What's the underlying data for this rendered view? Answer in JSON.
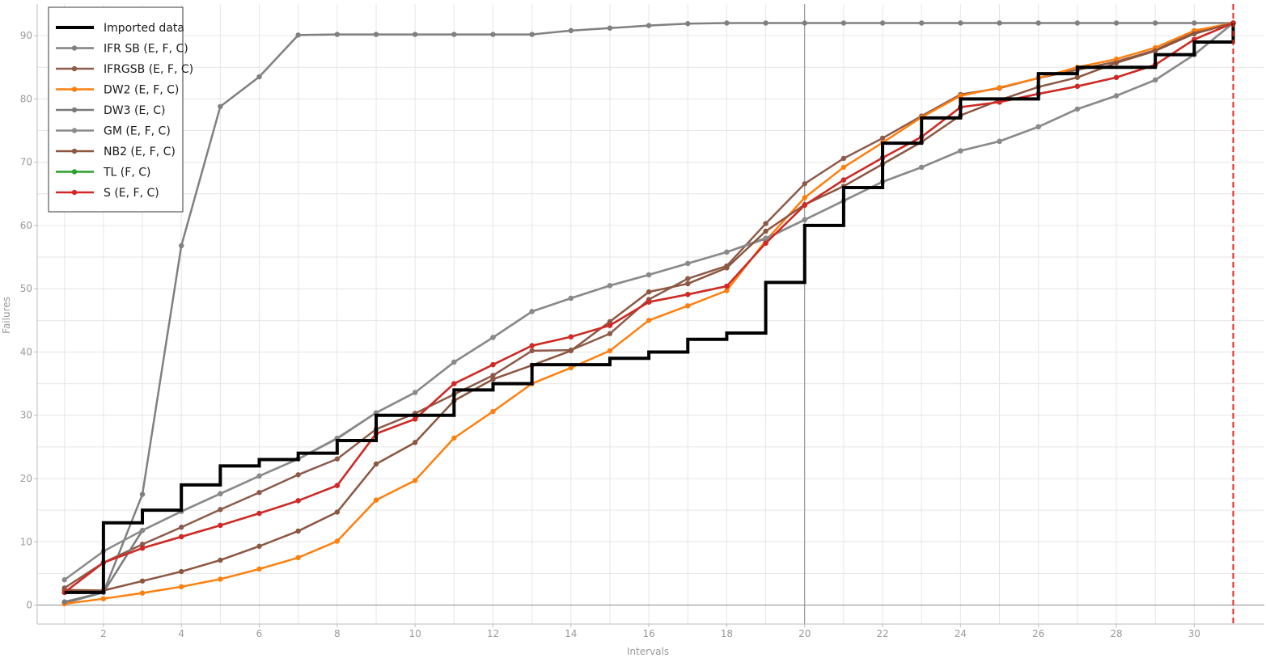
{
  "chart_data": {
    "type": "line",
    "xlabel": "Intervals",
    "ylabel": "Failures",
    "xlim": [
      0.3,
      31.8
    ],
    "ylim": [
      -3,
      95
    ],
    "x_ticks": [
      2,
      4,
      6,
      8,
      10,
      12,
      14,
      16,
      18,
      20,
      22,
      24,
      26,
      28,
      30
    ],
    "y_ticks": [
      0,
      10,
      20,
      30,
      40,
      50,
      60,
      70,
      80,
      90
    ],
    "grid": true,
    "legend_position": "top-left",
    "marker_line_x": 31,
    "marker_line_color": "#e8231e",
    "x": [
      1,
      2,
      3,
      4,
      5,
      6,
      7,
      8,
      9,
      10,
      11,
      12,
      13,
      14,
      15,
      16,
      17,
      18,
      19,
      20,
      21,
      22,
      23,
      24,
      25,
      26,
      27,
      28,
      29,
      30,
      31
    ],
    "imported": {
      "name": "Imported data",
      "color": "#000000",
      "values": [
        2,
        13,
        15,
        19,
        22,
        23,
        24,
        26,
        30,
        30,
        34,
        35,
        38,
        38,
        39,
        40,
        42,
        43,
        51,
        60,
        66,
        73,
        77,
        80,
        80,
        84,
        85,
        85,
        87,
        89,
        92
      ]
    },
    "series": [
      {
        "name": "IFR SB (E, F, C)",
        "color": "#808080",
        "values": [
          0.3,
          2,
          17.5,
          56.8,
          78.8,
          83.5,
          90.1,
          90.2,
          90.2,
          90.2,
          90.2,
          90.2,
          90.2,
          90.8,
          91.2,
          91.6,
          91.9,
          92,
          92,
          92,
          92,
          92,
          92,
          92,
          92,
          92,
          92,
          92,
          92,
          92,
          92
        ]
      },
      {
        "name": "IFRGSB (E, F, C)",
        "color": "#8c5b4a",
        "values": [
          2.7,
          6.7,
          9.6,
          12.3,
          15.1,
          17.8,
          20.6,
          23.1,
          27.8,
          30.3,
          33.3,
          36.3,
          40.2,
          40.3,
          42.9,
          48.3,
          51.6,
          53.6,
          60.3,
          66.6,
          70.6,
          73.8,
          77.3,
          80.7,
          81.7,
          83.3,
          84.6,
          85.9,
          87.7,
          90.6,
          92
        ]
      },
      {
        "name": "DW2 (E, F, C)",
        "color": "#ff7f0e",
        "values": [
          0.2,
          1,
          1.9,
          2.9,
          4.1,
          5.7,
          7.5,
          10.1,
          16.6,
          19.7,
          26.4,
          30.6,
          35,
          37.5,
          40.2,
          45,
          47.3,
          49.7,
          57.6,
          64.4,
          69.2,
          73.1,
          77.1,
          80.5,
          81.8,
          83.3,
          85,
          86.3,
          88.1,
          90.8,
          92
        ]
      },
      {
        "name": "DW3 (E, C)",
        "color": "#7a7a7a",
        "values": [
          0.5,
          2,
          11.8,
          14.8,
          17.6,
          20.4,
          23.1,
          26.3,
          30.4,
          33.6,
          38.4,
          42.3,
          46.4,
          48.5,
          50.5,
          52.2,
          54,
          55.8,
          57.9,
          60.9,
          63.9,
          66.9,
          69.2,
          71.8,
          73.3,
          75.6,
          78.4,
          80.5,
          83,
          87,
          92
        ]
      },
      {
        "name": "GM (E, F, C)",
        "color": "#8a8a8a",
        "values": [
          4,
          8.5,
          11.8,
          14.8,
          17.6,
          20.4,
          23.1,
          26.4,
          30.4,
          33.6,
          38.4,
          42.3,
          46.4,
          48.5,
          50.5,
          52.2,
          54,
          55.8,
          58,
          60.9,
          63.9,
          66.9,
          69.2,
          71.8,
          73.3,
          75.6,
          78.4,
          80.5,
          83,
          87,
          92
        ]
      },
      {
        "name": "NB2 (E, F, C)",
        "color": "#8c5640",
        "values": [
          2.4,
          2.3,
          3.8,
          5.3,
          7.1,
          9.3,
          11.7,
          14.7,
          22.3,
          25.7,
          32.3,
          35.7,
          37.9,
          40.2,
          44.8,
          49.5,
          50.8,
          53.3,
          59.1,
          63.3,
          66.2,
          69.7,
          73.2,
          77.4,
          79.8,
          81.9,
          83.4,
          85.7,
          87.6,
          90.3,
          92
        ]
      },
      {
        "name": "TL (F, C)",
        "color": "#2ca02c",
        "values": [
          2,
          6.7,
          9,
          10.8,
          12.6,
          14.5,
          16.5,
          18.9,
          27.1,
          29.4,
          35,
          38,
          41,
          42.4,
          44.2,
          47.9,
          49.1,
          50.4,
          57.2,
          63.2,
          67.2,
          70.7,
          74,
          78.7,
          79.5,
          80.8,
          82,
          83.4,
          85.4,
          89.4,
          92
        ]
      },
      {
        "name": "S (E, F, C)",
        "color": "#d62728",
        "values": [
          2,
          6.7,
          9,
          10.8,
          12.6,
          14.5,
          16.5,
          18.9,
          27.1,
          29.4,
          35,
          38,
          41,
          42.4,
          44.2,
          47.9,
          49.1,
          50.4,
          57.2,
          63.2,
          67.2,
          70.7,
          74,
          78.7,
          79.5,
          80.8,
          82,
          83.4,
          85.4,
          89.4,
          92
        ]
      }
    ]
  }
}
